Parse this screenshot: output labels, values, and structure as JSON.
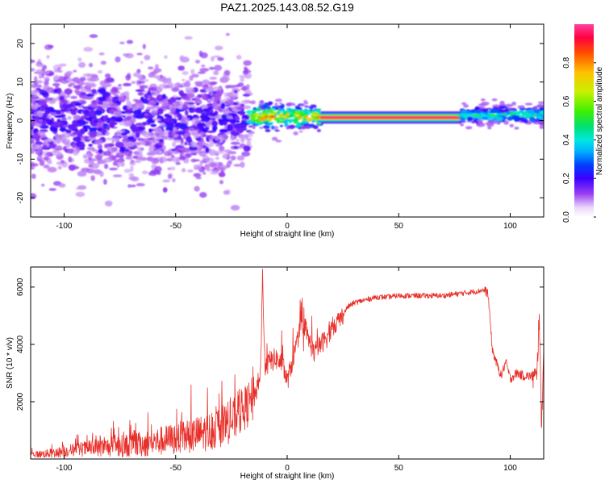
{
  "title": "PAZ1.2025.143.08.52.G19",
  "chart_data": [
    {
      "type": "heatmap",
      "xlabel": "Height of straight line (km)",
      "ylabel": "Frequency (Hz)",
      "xlim": [
        -115,
        115
      ],
      "ylim": [
        -25,
        25
      ],
      "x_ticks": [
        -100,
        -50,
        0,
        50,
        100
      ],
      "y_ticks": [
        -20,
        -10,
        0,
        10,
        20
      ],
      "colorbar": {
        "label": "Normalized spectral amplitude",
        "range": [
          0,
          1
        ],
        "ticks": [
          0.0,
          0.2,
          0.4,
          0.6,
          0.8
        ],
        "tick_labels": [
          "0.0",
          "0.2",
          "0.4",
          "0.6",
          "0.8"
        ],
        "colors": [
          "#e9d6fb",
          "#9a3ff0",
          "#3b00ff",
          "#0040ff",
          "#00b0ff",
          "#00e8e0",
          "#00e070",
          "#40f000",
          "#c8f000",
          "#ffc000",
          "#ff5000",
          "#ff0040",
          "#ff40a0"
        ]
      },
      "regions": [
        {
          "x_range": [
            -115,
            -17
          ],
          "description_values": {
            "freq_spread_hz": 25,
            "amplitude_range": [
              0.0,
              0.2
            ]
          }
        },
        {
          "x_range": [
            -17,
            15
          ],
          "center_hz": 1,
          "half_width_hz": 2,
          "amplitude_range": [
            0.3,
            0.9
          ]
        },
        {
          "x_range": [
            15,
            78
          ],
          "center_hz": 0.8,
          "half_width_hz": 1,
          "amplitude_range": [
            0.85,
            1.0
          ]
        },
        {
          "x_range": [
            78,
            115
          ],
          "center_hz": 1.5,
          "half_width_hz": 2.5,
          "amplitude_range": [
            0.3,
            0.6
          ]
        }
      ]
    },
    {
      "type": "line",
      "xlabel": "Height of straight line (km)",
      "ylabel": "SNR (10 * v/v)",
      "xlim": [
        -115,
        115
      ],
      "ylim": [
        0,
        6700
      ],
      "x_ticks": [
        -100,
        -50,
        0,
        50,
        100
      ],
      "y_ticks": [
        2000,
        4000,
        6000
      ],
      "series": [
        {
          "color": "#e8302a",
          "x": [
            -115,
            -105,
            -95,
            -85,
            -75,
            -65,
            -55,
            -45,
            -35,
            -25,
            -20,
            -15,
            -12,
            -11,
            -10,
            -8,
            -5,
            -2,
            0,
            3,
            6,
            9,
            12,
            15,
            18,
            21,
            24,
            27,
            30,
            35,
            40,
            45,
            50,
            55,
            60,
            65,
            70,
            75,
            80,
            85,
            88,
            90,
            92,
            94,
            96,
            98,
            100,
            103,
            106,
            109,
            112,
            113,
            114,
            115
          ],
          "y": [
            150,
            200,
            330,
            380,
            450,
            520,
            650,
            780,
            950,
            1300,
            1700,
            2100,
            2900,
            6500,
            3100,
            3400,
            3500,
            3300,
            2700,
            3600,
            4600,
            4300,
            3700,
            4000,
            4250,
            4700,
            4900,
            5300,
            5450,
            5550,
            5650,
            5650,
            5700,
            5700,
            5700,
            5700,
            5700,
            5750,
            5800,
            5850,
            5900,
            5800,
            3800,
            3300,
            2900,
            3400,
            2800,
            3000,
            2900,
            2900,
            2800,
            5300,
            1000,
            4100
          ]
        }
      ]
    }
  ]
}
